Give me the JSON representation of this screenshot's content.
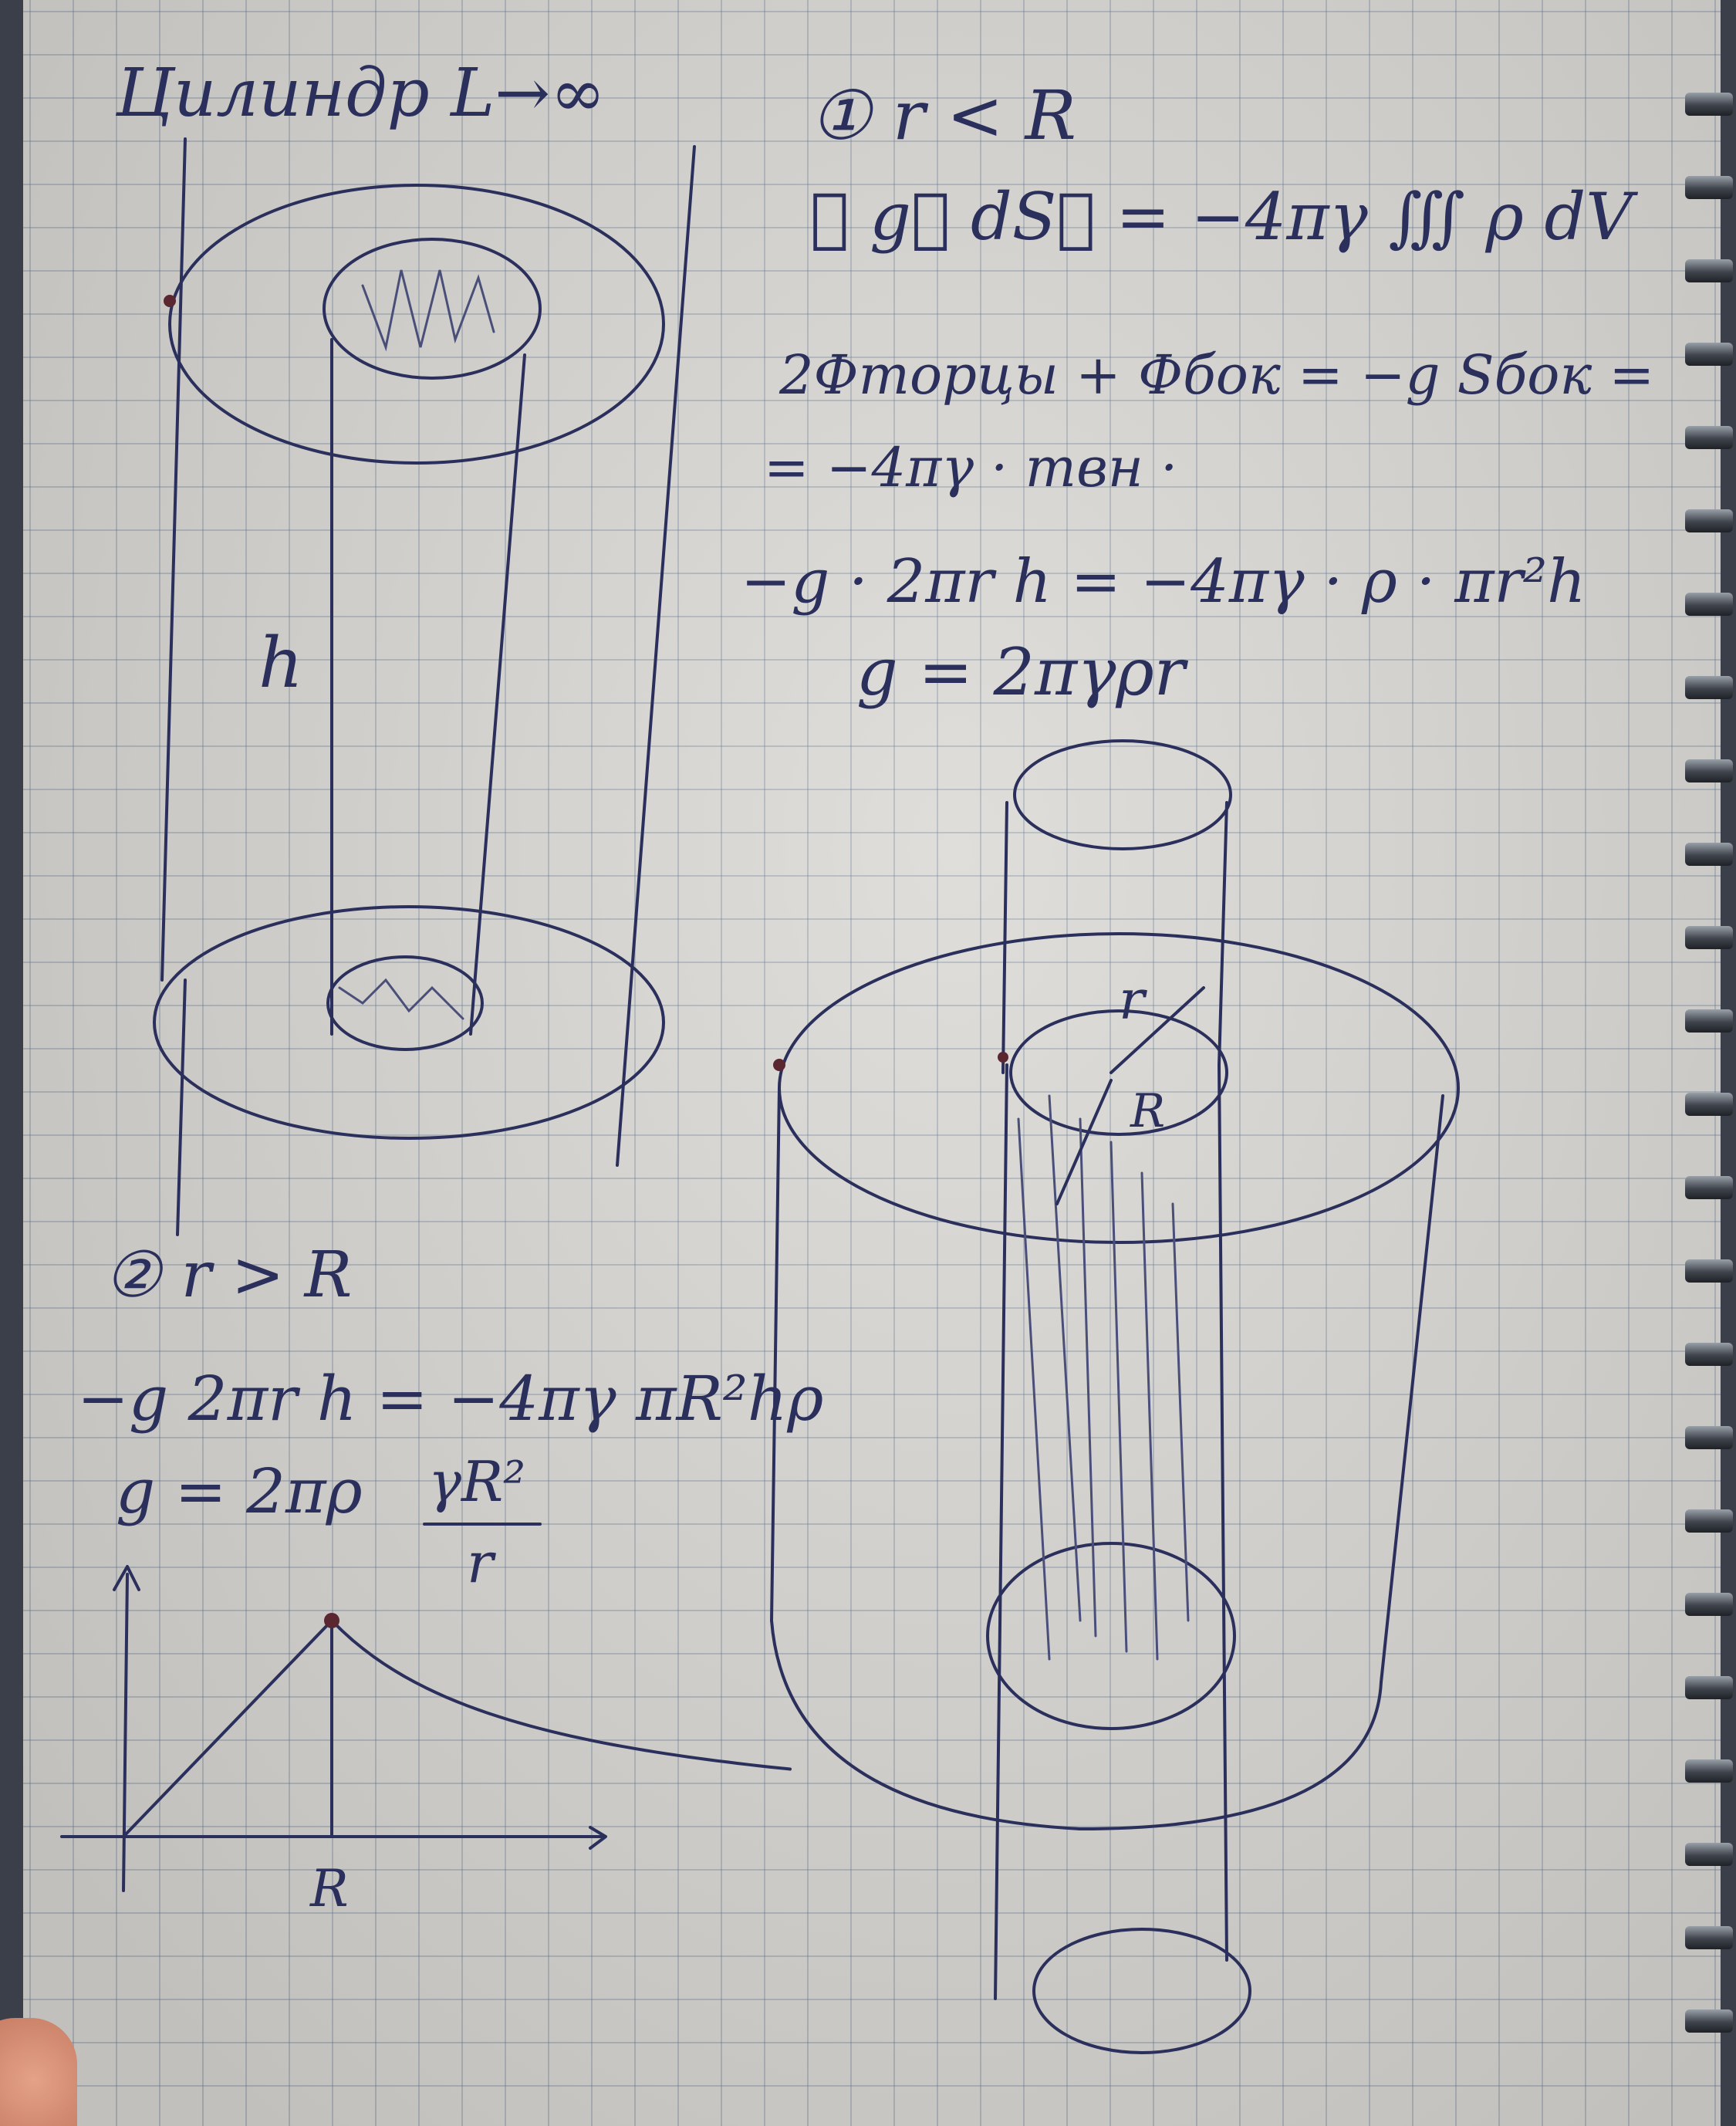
{
  "notebook": {
    "topic": "Цилиндр L→∞",
    "case1": {
      "condition": "① r < R",
      "gauss_law": "∯ g⃗ dS⃗ = −4πγ ∭ ρ dV",
      "line_flux": "2Фторцы + Фбок = −g Sбок =",
      "line_mass": "= −4πγ · mвн ·",
      "line_equation": "−g · 2πr h = −4πγ · ρ · πr²h",
      "result": "g = 2πγρr"
    },
    "case2": {
      "condition": "② r > R",
      "line_equation": "−g 2πr h = −4πγ πR²hρ",
      "result_prefix": "g = 2πρ",
      "result_numerator": "γR²",
      "result_denominator": "r"
    },
    "labels": {
      "height": "h",
      "radius_small": "r",
      "radius_big": "R",
      "axis_tick": "R"
    },
    "graph": {
      "description_points": [
        [
          0,
          0
        ],
        [
          1,
          1
        ],
        [
          3.2,
          0.31
        ]
      ],
      "peak_x": 1,
      "peak_y": 1
    },
    "colors": {
      "paper": "#dcdad6",
      "grid": "#5f7896",
      "ink": "#2b2f5c",
      "marker": "#5a2630"
    }
  }
}
